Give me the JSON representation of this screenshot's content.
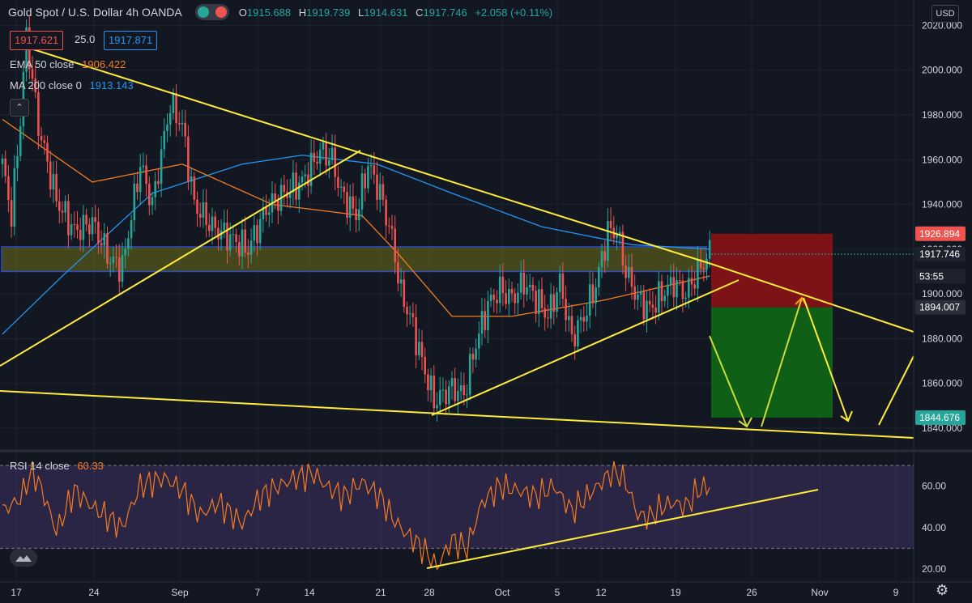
{
  "header": {
    "title": "Gold Spot / U.S. Dollar  4h  OANDA",
    "ohlc": [
      {
        "k": "O",
        "v": "1915.688"
      },
      {
        "k": "H",
        "v": "1919.739"
      },
      {
        "k": "L",
        "v": "1914.631"
      },
      {
        "k": "C",
        "v": "1917.746"
      }
    ],
    "change": "+2.058 (+0.11%)",
    "bid": "1917.621",
    "spread": "25.0",
    "ask": "1917.871"
  },
  "indicators": {
    "ema_label": "EMA 50 close",
    "ema_value": "1906.422",
    "ma_label": "MA 200 close 0",
    "ma_value": "1913.143",
    "rsi_label": "RSI 14 close",
    "rsi_value": "60.33"
  },
  "currency_button": "USD",
  "colors": {
    "background": "#131722",
    "up": "#26a69a",
    "down": "#ef5350",
    "ema": "#f57c20",
    "ma": "#2196f3",
    "trendline": "#ffeb3b",
    "stop_zone": "#7d1317",
    "target_zone": "#0f6016",
    "rsi": "#f57c20"
  },
  "chart_data": [
    {
      "type": "candlestick",
      "x_ticks": [
        "17",
        "24",
        "Sep",
        "7",
        "14",
        "21",
        "28",
        "Oct",
        "5",
        "12",
        "19",
        "26",
        "Nov",
        "9"
      ],
      "ylim": [
        1836,
        2031
      ],
      "y_ticks": [
        "2020.000",
        "2000.000",
        "1980.000",
        "1960.000",
        "1940.000",
        "1920.000",
        "1900.000",
        "1880.000",
        "1860.000",
        "1840.000"
      ],
      "price_labels": [
        {
          "label": "1926.894",
          "value": 1926.894,
          "color": "#ef5350"
        },
        {
          "label": "1917.746",
          "value": 1917.746,
          "color": "#1e222d"
        },
        {
          "label": "53:55",
          "value": 1907.9,
          "color": "#1e222d"
        },
        {
          "label": "1894.007",
          "value": 1894.007,
          "color": "#2a2e39"
        },
        {
          "label": "1844.676",
          "value": 1844.676,
          "color": "#26a69a"
        }
      ],
      "close_anchors": [
        [
          0,
          1958
        ],
        [
          3,
          1935
        ],
        [
          6,
          1978
        ],
        [
          8,
          2016
        ],
        [
          12,
          1975
        ],
        [
          18,
          1942
        ],
        [
          24,
          1928
        ],
        [
          30,
          1932
        ],
        [
          36,
          1915
        ],
        [
          40,
          1912
        ],
        [
          46,
          1958
        ],
        [
          50,
          1940
        ],
        [
          56,
          1985
        ],
        [
          60,
          1975
        ],
        [
          64,
          1940
        ],
        [
          70,
          1930
        ],
        [
          76,
          1925
        ],
        [
          82,
          1920
        ],
        [
          88,
          1938
        ],
        [
          94,
          1945
        ],
        [
          100,
          1950
        ],
        [
          106,
          1964
        ],
        [
          110,
          1960
        ],
        [
          113,
          1945
        ],
        [
          118,
          1935
        ],
        [
          122,
          1958
        ],
        [
          126,
          1945
        ],
        [
          130,
          1925
        ],
        [
          133,
          1900
        ],
        [
          136,
          1890
        ],
        [
          140,
          1870
        ],
        [
          144,
          1852
        ],
        [
          150,
          1858
        ],
        [
          154,
          1855
        ],
        [
          158,
          1878
        ],
        [
          162,
          1895
        ],
        [
          166,
          1902
        ],
        [
          170,
          1898
        ],
        [
          174,
          1905
        ],
        [
          178,
          1898
        ],
        [
          182,
          1890
        ],
        [
          186,
          1905
        ],
        [
          190,
          1880
        ],
        [
          194,
          1890
        ],
        [
          198,
          1904
        ],
        [
          202,
          1928
        ],
        [
          205,
          1928
        ],
        [
          208,
          1910
        ],
        [
          212,
          1898
        ],
        [
          216,
          1893
        ],
        [
          220,
          1900
        ],
        [
          224,
          1905
        ],
        [
          228,
          1900
        ],
        [
          232,
          1910
        ],
        [
          236,
          1918
        ]
      ],
      "ema50_anchors": [
        [
          0,
          1978
        ],
        [
          30,
          1950
        ],
        [
          60,
          1958
        ],
        [
          90,
          1940
        ],
        [
          120,
          1935
        ],
        [
          132,
          1918
        ],
        [
          150,
          1890
        ],
        [
          170,
          1890
        ],
        [
          200,
          1897
        ],
        [
          236,
          1908
        ]
      ],
      "ma200_anchors": [
        [
          0,
          1882
        ],
        [
          20,
          1908
        ],
        [
          50,
          1945
        ],
        [
          80,
          1958
        ],
        [
          100,
          1962
        ],
        [
          125,
          1958
        ],
        [
          150,
          1945
        ],
        [
          180,
          1930
        ],
        [
          210,
          1922
        ],
        [
          236,
          1920
        ]
      ],
      "zones": [
        {
          "name": "support-band",
          "y1": 1910,
          "y2": 1921
        },
        {
          "name": "stop-zone",
          "y1": 1894.007,
          "y2": 1926.894
        },
        {
          "name": "target-zone",
          "y1": 1844.676,
          "y2": 1894.007
        }
      ]
    },
    {
      "type": "line",
      "name": "RSI",
      "ylim": [
        15,
        72
      ],
      "y_ticks": [
        "60.00",
        "40.00",
        "20.00"
      ],
      "levels": [
        70,
        30
      ],
      "anchors": [
        [
          0,
          48
        ],
        [
          6,
          54
        ],
        [
          10,
          68
        ],
        [
          14,
          55
        ],
        [
          18,
          38
        ],
        [
          24,
          58
        ],
        [
          30,
          50
        ],
        [
          36,
          44
        ],
        [
          40,
          40
        ],
        [
          46,
          60
        ],
        [
          54,
          64
        ],
        [
          60,
          58
        ],
        [
          66,
          46
        ],
        [
          72,
          52
        ],
        [
          80,
          42
        ],
        [
          86,
          55
        ],
        [
          92,
          60
        ],
        [
          98,
          64
        ],
        [
          104,
          66
        ],
        [
          108,
          60
        ],
        [
          114,
          55
        ],
        [
          120,
          62
        ],
        [
          126,
          55
        ],
        [
          130,
          45
        ],
        [
          134,
          38
        ],
        [
          138,
          33
        ],
        [
          142,
          27
        ],
        [
          145,
          21
        ],
        [
          150,
          34
        ],
        [
          155,
          30
        ],
        [
          160,
          52
        ],
        [
          166,
          60
        ],
        [
          172,
          58
        ],
        [
          178,
          55
        ],
        [
          184,
          60
        ],
        [
          190,
          48
        ],
        [
          195,
          55
        ],
        [
          200,
          62
        ],
        [
          204,
          68
        ],
        [
          208,
          62
        ],
        [
          212,
          46
        ],
        [
          216,
          45
        ],
        [
          220,
          50
        ],
        [
          224,
          52
        ],
        [
          228,
          50
        ],
        [
          232,
          58
        ],
        [
          236,
          60
        ]
      ]
    }
  ]
}
